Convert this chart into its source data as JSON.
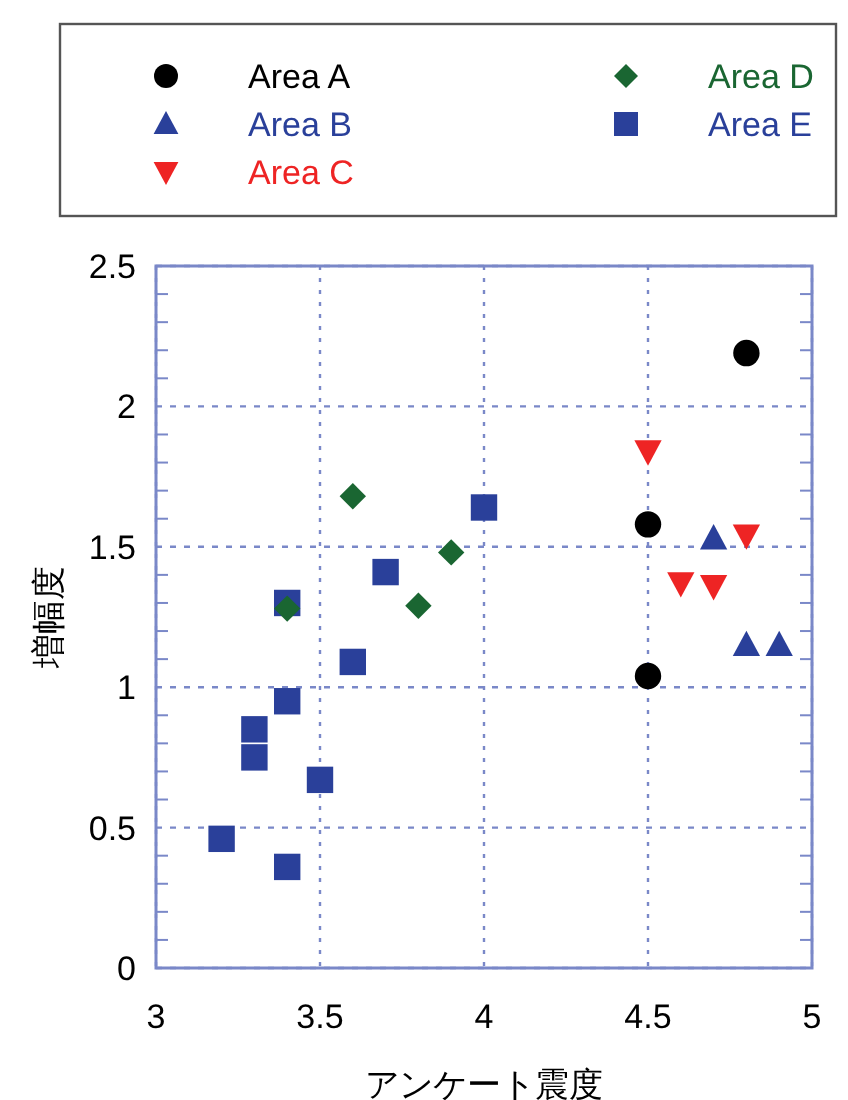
{
  "chart_data": {
    "type": "scatter",
    "xlabel": "アンケート震度",
    "ylabel": "増幅度",
    "xlim": [
      3,
      5
    ],
    "xticks": [
      3,
      3.5,
      4,
      4.5,
      5
    ],
    "ylim": [
      0,
      2.5
    ],
    "yticks": [
      0,
      0.5,
      1,
      1.5,
      2,
      2.5
    ],
    "grid": true,
    "legend": "top",
    "series": [
      {
        "name": "Area A",
        "color": "#000000",
        "marker": "circle",
        "x": [
          4.8,
          4.5,
          4.5
        ],
        "values": [
          2.19,
          1.58,
          1.04
        ]
      },
      {
        "name": "Area B",
        "color": "#2a409a",
        "marker": "triangle",
        "x": [
          4.7,
          4.8,
          4.9
        ],
        "values": [
          1.53,
          1.15,
          1.15
        ]
      },
      {
        "name": "Area C",
        "color": "#ee2424",
        "marker": "triangle-down",
        "x": [
          4.5,
          4.6,
          4.7,
          4.8
        ],
        "values": [
          1.84,
          1.37,
          1.36,
          1.54
        ]
      },
      {
        "name": "Area D",
        "color": "#1a6632",
        "marker": "diamond",
        "x": [
          3.6,
          3.9,
          3.8,
          3.4
        ],
        "values": [
          1.68,
          1.48,
          1.29,
          1.28
        ]
      },
      {
        "name": "Area E",
        "color": "#2a409a",
        "marker": "square",
        "x": [
          3.4,
          3.7,
          4.0,
          3.6,
          3.4,
          3.3,
          3.3,
          3.5,
          3.2,
          3.4
        ],
        "values": [
          1.3,
          1.41,
          1.64,
          1.09,
          0.95,
          0.85,
          0.75,
          0.67,
          0.46,
          0.36
        ]
      }
    ]
  }
}
